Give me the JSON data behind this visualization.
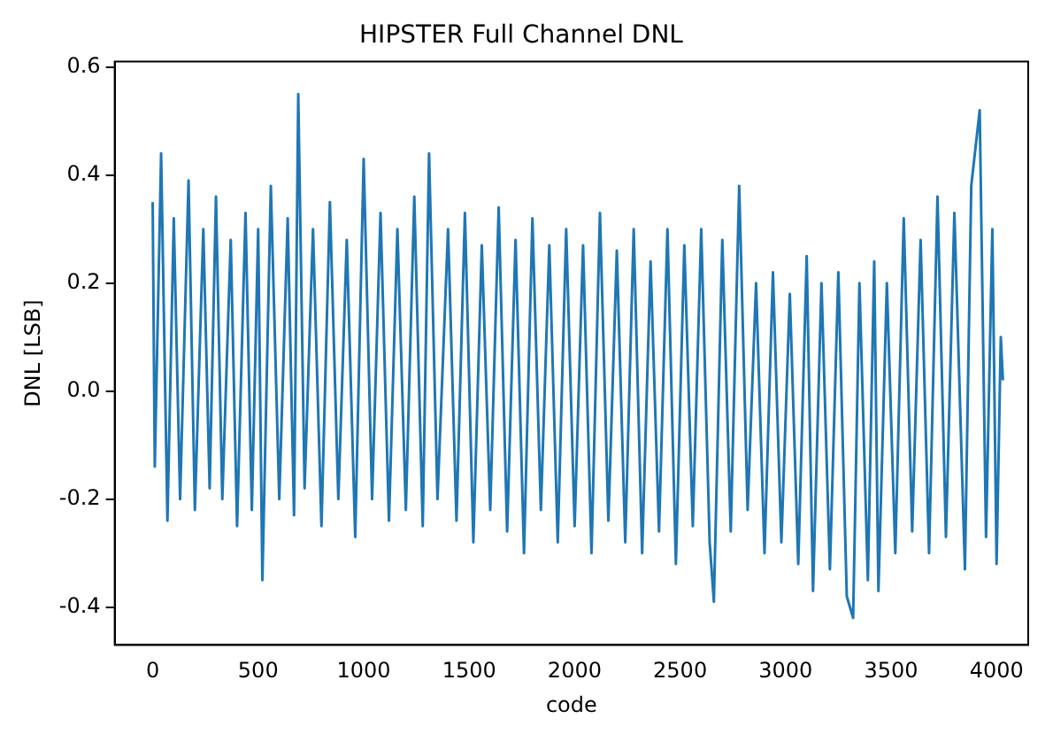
{
  "chart_data": {
    "type": "line",
    "title": "HIPSTER Full Channel DNL",
    "xlabel": "code",
    "ylabel": "DNL [LSB]",
    "color": "#1f77b4",
    "marker": "none",
    "grid": false,
    "legend": false,
    "x": [
      0,
      10,
      40,
      70,
      100,
      130,
      170,
      200,
      240,
      270,
      300,
      330,
      370,
      400,
      440,
      470,
      500,
      520,
      560,
      600,
      640,
      670,
      690,
      720,
      760,
      800,
      840,
      880,
      920,
      960,
      1000,
      1040,
      1080,
      1120,
      1160,
      1200,
      1240,
      1280,
      1310,
      1350,
      1400,
      1440,
      1480,
      1520,
      1560,
      1600,
      1640,
      1680,
      1720,
      1760,
      1800,
      1840,
      1880,
      1920,
      1960,
      2000,
      2040,
      2080,
      2120,
      2160,
      2200,
      2240,
      2280,
      2320,
      2360,
      2400,
      2440,
      2480,
      2520,
      2560,
      2600,
      2640,
      2660,
      2700,
      2740,
      2780,
      2820,
      2860,
      2900,
      2940,
      2980,
      3020,
      3060,
      3100,
      3130,
      3170,
      3210,
      3250,
      3290,
      3320,
      3350,
      3390,
      3420,
      3440,
      3480,
      3520,
      3560,
      3600,
      3640,
      3680,
      3720,
      3760,
      3800,
      3850,
      3880,
      3920,
      3950,
      3980,
      4000,
      4020,
      4030
    ],
    "values": [
      0.35,
      -0.14,
      0.44,
      -0.24,
      0.32,
      -0.2,
      0.39,
      -0.22,
      0.3,
      -0.18,
      0.36,
      -0.2,
      0.28,
      -0.25,
      0.33,
      -0.22,
      0.3,
      -0.35,
      0.38,
      -0.2,
      0.32,
      -0.23,
      0.55,
      -0.18,
      0.3,
      -0.25,
      0.35,
      -0.2,
      0.28,
      -0.27,
      0.43,
      -0.2,
      0.33,
      -0.24,
      0.3,
      -0.22,
      0.36,
      -0.25,
      0.44,
      -0.2,
      0.3,
      -0.24,
      0.33,
      -0.28,
      0.27,
      -0.22,
      0.34,
      -0.26,
      0.28,
      -0.3,
      0.32,
      -0.22,
      0.27,
      -0.28,
      0.3,
      -0.25,
      0.27,
      -0.3,
      0.33,
      -0.24,
      0.26,
      -0.28,
      0.3,
      -0.3,
      0.24,
      -0.26,
      0.3,
      -0.32,
      0.27,
      -0.25,
      0.3,
      -0.28,
      -0.39,
      0.28,
      -0.26,
      0.38,
      -0.22,
      0.2,
      -0.3,
      0.22,
      -0.28,
      0.18,
      -0.32,
      0.25,
      -0.37,
      0.2,
      -0.33,
      0.22,
      -0.38,
      -0.42,
      0.2,
      -0.35,
      0.24,
      -0.37,
      0.2,
      -0.3,
      0.32,
      -0.26,
      0.28,
      -0.3,
      0.36,
      -0.27,
      0.33,
      -0.33,
      0.38,
      0.52,
      -0.27,
      0.3,
      -0.32,
      0.1,
      0.02
    ],
    "xlim": [
      -180,
      4150
    ],
    "ylim": [
      -0.47,
      0.61
    ],
    "xticks": [
      0,
      500,
      1000,
      1500,
      2000,
      2500,
      3000,
      3500,
      4000
    ],
    "yticks": [
      -0.4,
      -0.2,
      {
        "value": 0,
        "label": "0.0"
      },
      0.2,
      0.4,
      0.6
    ]
  }
}
